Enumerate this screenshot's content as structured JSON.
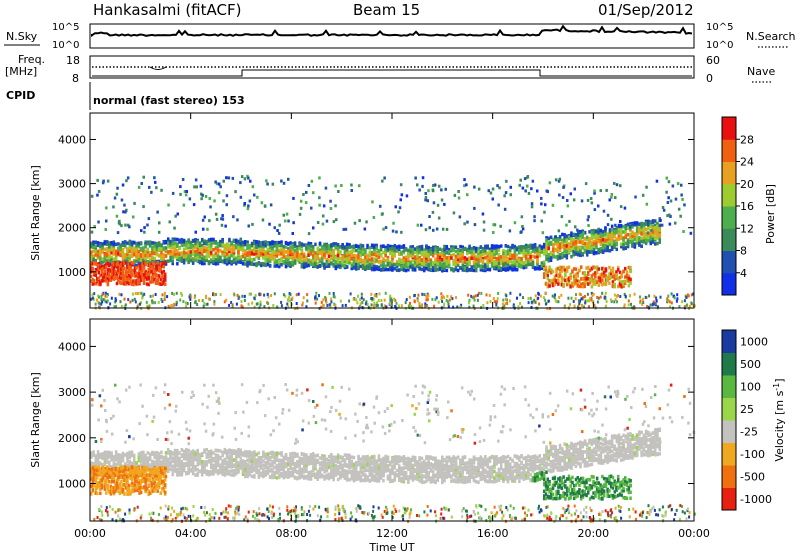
{
  "header": {
    "station": "Hankasalmi (fitACF)",
    "beam": "Beam 15",
    "date": "01/Sep/2012"
  },
  "strip_labels": {
    "nsky": "N.Sky",
    "nsky_ticks": [
      "10^5",
      "10^0"
    ],
    "nsearch": "N.Search",
    "nsearch_ticks": [
      "10^5",
      "10^0"
    ],
    "freq": "Freq.",
    "freq_unit": "[MHz]",
    "freq_ticks": [
      "18",
      "8"
    ],
    "nave": "Nave",
    "nave_ticks": [
      "60",
      "0"
    ],
    "cpid": "CPID",
    "cpid_text": "normal (fast stereo) 153"
  },
  "chart_data": [
    {
      "type": "heatmap",
      "name": "power",
      "xlabel": "",
      "ylabel": "Slant Range [km]",
      "x_range": [
        "00:00",
        "00:00"
      ],
      "y_ticks": [
        1000,
        2000,
        3000,
        4000
      ],
      "ylim": [
        180,
        4600
      ],
      "colorbar_label": "Power [dB]",
      "colorbar_ticks": [
        4,
        8,
        12,
        16,
        20,
        24,
        28
      ],
      "colorbar_colors": [
        "#1030e8",
        "#2050b0",
        "#3a8a5a",
        "#4cae4c",
        "#9ccc30",
        "#e8a020",
        "#f06010",
        "#e81010"
      ],
      "features": [
        {
          "x_start": "00:00",
          "x_end": "03:00",
          "range_low": 700,
          "range_high": 1300,
          "level": 28
        },
        {
          "x_start": "00:00",
          "x_end": "22:30",
          "range_low": 1200,
          "range_high": 1800,
          "level": 20
        },
        {
          "x_start": "18:00",
          "x_end": "21:30",
          "range_low": 650,
          "range_high": 1100,
          "level": 24
        }
      ]
    },
    {
      "type": "heatmap",
      "name": "velocity",
      "xlabel": "Time UT",
      "ylabel": "Slant Range [km]",
      "x_ticks": [
        "00:00",
        "04:00",
        "08:00",
        "12:00",
        "16:00",
        "20:00",
        "00:00"
      ],
      "y_ticks": [
        1000,
        2000,
        3000,
        4000
      ],
      "ylim": [
        180,
        4600
      ],
      "colorbar_label": "Velocity [m s-1]",
      "colorbar_ticks": [
        "1000",
        "500",
        "100",
        "25",
        "-25",
        "-100",
        "-500",
        "-1000"
      ],
      "colorbar_colors": [
        "#1a3aa0",
        "#1f7a4a",
        "#5ab840",
        "#9ad64a",
        "#c4c2be",
        "#f0a820",
        "#f07010",
        "#e82010"
      ]
    }
  ],
  "colors": {
    "gray": "#c4c2be",
    "ground_scatter": "#bebab4"
  }
}
